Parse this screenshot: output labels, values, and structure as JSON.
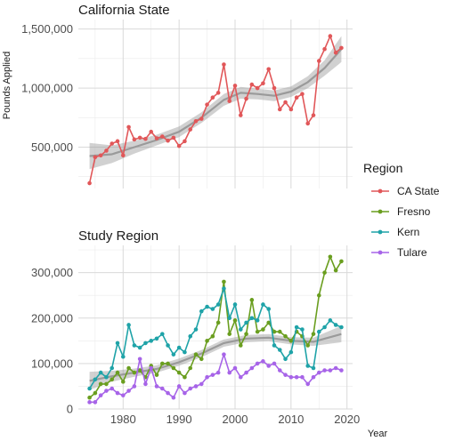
{
  "legend": {
    "title": "Region",
    "entries": [
      {
        "label": "CA State",
        "color": "#E15759"
      },
      {
        "label": "Fresno",
        "color": "#6A9E1F"
      },
      {
        "label": "Kern",
        "color": "#1FA3A8"
      },
      {
        "label": "Tulare",
        "color": "#A764E8"
      }
    ]
  },
  "chart_data": [
    {
      "type": "line",
      "title": "California State",
      "ylabel": "Pounds Applied",
      "xlabel": "",
      "xlim": [
        1972,
        2021
      ],
      "ylim": [
        150000,
        1580000
      ],
      "yticks": [
        500000,
        1000000,
        1500000
      ],
      "ytick_labels": [
        "500,000",
        "1,000,000",
        "1,500,000"
      ],
      "grid": true,
      "series": [
        {
          "name": "CA State",
          "color": "#E15759",
          "x": [
            1974,
            1975,
            1976,
            1977,
            1978,
            1979,
            1980,
            1981,
            1982,
            1983,
            1984,
            1985,
            1986,
            1987,
            1988,
            1989,
            1990,
            1991,
            1992,
            1993,
            1994,
            1995,
            1996,
            1997,
            1998,
            1999,
            2000,
            2001,
            2002,
            2003,
            2004,
            2005,
            2006,
            2007,
            2008,
            2009,
            2010,
            2011,
            2012,
            2013,
            2014,
            2015,
            2016,
            2017,
            2018,
            2019
          ],
          "y": [
            195000,
            415000,
            430000,
            470000,
            530000,
            550000,
            430000,
            670000,
            565000,
            580000,
            570000,
            630000,
            575000,
            590000,
            555000,
            580000,
            510000,
            550000,
            650000,
            720000,
            740000,
            860000,
            920000,
            960000,
            1200000,
            890000,
            1020000,
            770000,
            910000,
            1030000,
            1000000,
            1040000,
            1160000,
            1000000,
            820000,
            880000,
            820000,
            920000,
            950000,
            700000,
            770000,
            1230000,
            1330000,
            1440000,
            1300000,
            1340000
          ]
        }
      ],
      "trend": {
        "x": [
          1974,
          1978,
          1982,
          1986,
          1990,
          1994,
          1998,
          2001,
          2004,
          2007,
          2010,
          2013,
          2016,
          2019
        ],
        "y": [
          425000,
          440000,
          500000,
          560000,
          630000,
          750000,
          900000,
          960000,
          950000,
          935000,
          970000,
          1050000,
          1170000,
          1330000
        ],
        "band": [
          110000,
          75000,
          55000,
          45000,
          45000,
          45000,
          50000,
          50000,
          45000,
          45000,
          45000,
          50000,
          65000,
          110000
        ]
      }
    },
    {
      "type": "line",
      "title": "Study Region",
      "xlabel": "Year",
      "ylabel": "",
      "xlim": [
        1972,
        2021
      ],
      "ylim": [
        0,
        360000
      ],
      "xticks": [
        1980,
        1990,
        2000,
        2010,
        2020
      ],
      "yticks": [
        0,
        100000,
        200000,
        300000
      ],
      "ytick_labels": [
        "0",
        "100,000",
        "200,000",
        "300,000"
      ],
      "grid": true,
      "series": [
        {
          "name": "Fresno",
          "color": "#6A9E1F",
          "x": [
            1974,
            1975,
            1976,
            1977,
            1978,
            1979,
            1980,
            1981,
            1982,
            1983,
            1984,
            1985,
            1986,
            1987,
            1988,
            1989,
            1990,
            1991,
            1992,
            1993,
            1994,
            1995,
            1996,
            1997,
            1998,
            1999,
            2000,
            2001,
            2002,
            2003,
            2004,
            2005,
            2006,
            2007,
            2008,
            2009,
            2010,
            2011,
            2012,
            2013,
            2014,
            2015,
            2016,
            2017,
            2018,
            2019
          ],
          "y": [
            25000,
            35000,
            55000,
            55000,
            65000,
            80000,
            60000,
            90000,
            80000,
            85000,
            70000,
            95000,
            75000,
            100000,
            100000,
            90000,
            80000,
            70000,
            90000,
            120000,
            110000,
            150000,
            160000,
            190000,
            280000,
            165000,
            195000,
            140000,
            165000,
            240000,
            170000,
            175000,
            190000,
            170000,
            170000,
            160000,
            150000,
            170000,
            160000,
            140000,
            165000,
            250000,
            300000,
            335000,
            305000,
            325000
          ]
        },
        {
          "name": "Kern",
          "color": "#1FA3A8",
          "x": [
            1974,
            1975,
            1976,
            1977,
            1978,
            1979,
            1980,
            1981,
            1982,
            1983,
            1984,
            1985,
            1986,
            1987,
            1988,
            1989,
            1990,
            1991,
            1992,
            1993,
            1994,
            1995,
            1996,
            1997,
            1998,
            1999,
            2000,
            2001,
            2002,
            2003,
            2004,
            2005,
            2006,
            2007,
            2008,
            2009,
            2010,
            2011,
            2012,
            2013,
            2014,
            2015,
            2016,
            2017,
            2018,
            2019
          ],
          "y": [
            45000,
            65000,
            80000,
            70000,
            90000,
            145000,
            115000,
            185000,
            140000,
            135000,
            145000,
            150000,
            155000,
            165000,
            140000,
            120000,
            135000,
            125000,
            160000,
            175000,
            215000,
            225000,
            220000,
            230000,
            265000,
            200000,
            230000,
            175000,
            190000,
            200000,
            195000,
            230000,
            220000,
            140000,
            130000,
            110000,
            125000,
            180000,
            175000,
            95000,
            90000,
            170000,
            180000,
            195000,
            185000,
            180000
          ]
        },
        {
          "name": "Tulare",
          "color": "#A764E8",
          "x": [
            1974,
            1975,
            1976,
            1977,
            1978,
            1979,
            1980,
            1981,
            1982,
            1983,
            1984,
            1985,
            1986,
            1987,
            1988,
            1989,
            1990,
            1991,
            1992,
            1993,
            1994,
            1995,
            1996,
            1997,
            1998,
            1999,
            2000,
            2001,
            2002,
            2003,
            2004,
            2005,
            2006,
            2007,
            2008,
            2009,
            2010,
            2011,
            2012,
            2013,
            2014,
            2015,
            2016,
            2017,
            2018,
            2019
          ],
          "y": [
            15000,
            15000,
            30000,
            40000,
            45000,
            35000,
            30000,
            40000,
            50000,
            110000,
            55000,
            90000,
            50000,
            45000,
            35000,
            25000,
            50000,
            35000,
            45000,
            50000,
            55000,
            70000,
            75000,
            80000,
            120000,
            80000,
            90000,
            70000,
            80000,
            90000,
            100000,
            105000,
            95000,
            100000,
            85000,
            75000,
            70000,
            70000,
            70000,
            55000,
            70000,
            80000,
            85000,
            85000,
            90000,
            85000
          ]
        }
      ],
      "trend": {
        "x": [
          1974,
          1978,
          1982,
          1986,
          1990,
          1994,
          1998,
          2002,
          2006,
          2010,
          2014,
          2019
        ],
        "y": [
          62000,
          72000,
          80000,
          88000,
          103000,
          122000,
          145000,
          155000,
          157000,
          150000,
          148000,
          165000
        ],
        "band": [
          20000,
          12000,
          9000,
          8000,
          8000,
          8000,
          8000,
          8000,
          8000,
          8000,
          9000,
          18000
        ]
      }
    }
  ]
}
